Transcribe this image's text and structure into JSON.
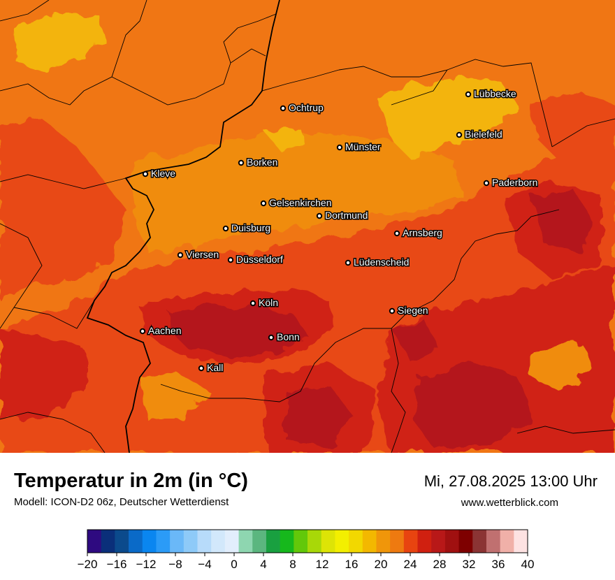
{
  "map": {
    "cities": [
      {
        "name": "Lübbecke"
      },
      {
        "name": "Ochtrup"
      },
      {
        "name": "Bielefeld"
      },
      {
        "name": "Münster"
      },
      {
        "name": "Borken"
      },
      {
        "name": "Kleve"
      },
      {
        "name": "Paderborn"
      },
      {
        "name": "Gelsenkirchen"
      },
      {
        "name": "Dortmund"
      },
      {
        "name": "Duisburg"
      },
      {
        "name": "Arnsberg"
      },
      {
        "name": "Viersen"
      },
      {
        "name": "Düsseldorf"
      },
      {
        "name": "Lüdenscheid"
      },
      {
        "name": "Köln"
      },
      {
        "name": "Siegen"
      },
      {
        "name": "Aachen"
      },
      {
        "name": "Bonn"
      },
      {
        "name": "Kall"
      }
    ]
  },
  "footer": {
    "title": "Temperatur in 2m (in °C)",
    "subtitle": "Modell: ICON-D2 06z, Deutscher Wetterdienst",
    "datetime": "Mi, 27.08.2025 13:00 Uhr",
    "website": "www.wetterblick.com"
  },
  "legend": {
    "colors": [
      "#2e0a80",
      "#0a2f7a",
      "#0b4a8c",
      "#0a6ac8",
      "#0a86f0",
      "#2b9bf7",
      "#6ab8f8",
      "#8ecaf8",
      "#b7dbfa",
      "#d2e8fb",
      "#e2eefc",
      "#8ed6b0",
      "#5bb67f",
      "#19a040",
      "#16b81c",
      "#62c80a",
      "#a8d808",
      "#dde406",
      "#f3ef00",
      "#f2d800",
      "#f3b800",
      "#f0960a",
      "#ee7a10",
      "#e84410",
      "#d02010",
      "#b81818",
      "#a01010",
      "#7e0000",
      "#8b3434",
      "#c07070",
      "#f0b0a8",
      "#fde2e2"
    ],
    "ticks": [
      "−20",
      "−16",
      "−12",
      "−8",
      "−4",
      "0",
      "4",
      "8",
      "12",
      "16",
      "20",
      "24",
      "28",
      "32",
      "36",
      "40"
    ],
    "tick_values": [
      -20,
      -16,
      -12,
      -8,
      -4,
      0,
      4,
      8,
      12,
      16,
      20,
      24,
      28,
      32,
      36,
      40
    ],
    "min": -20,
    "max": 40
  }
}
